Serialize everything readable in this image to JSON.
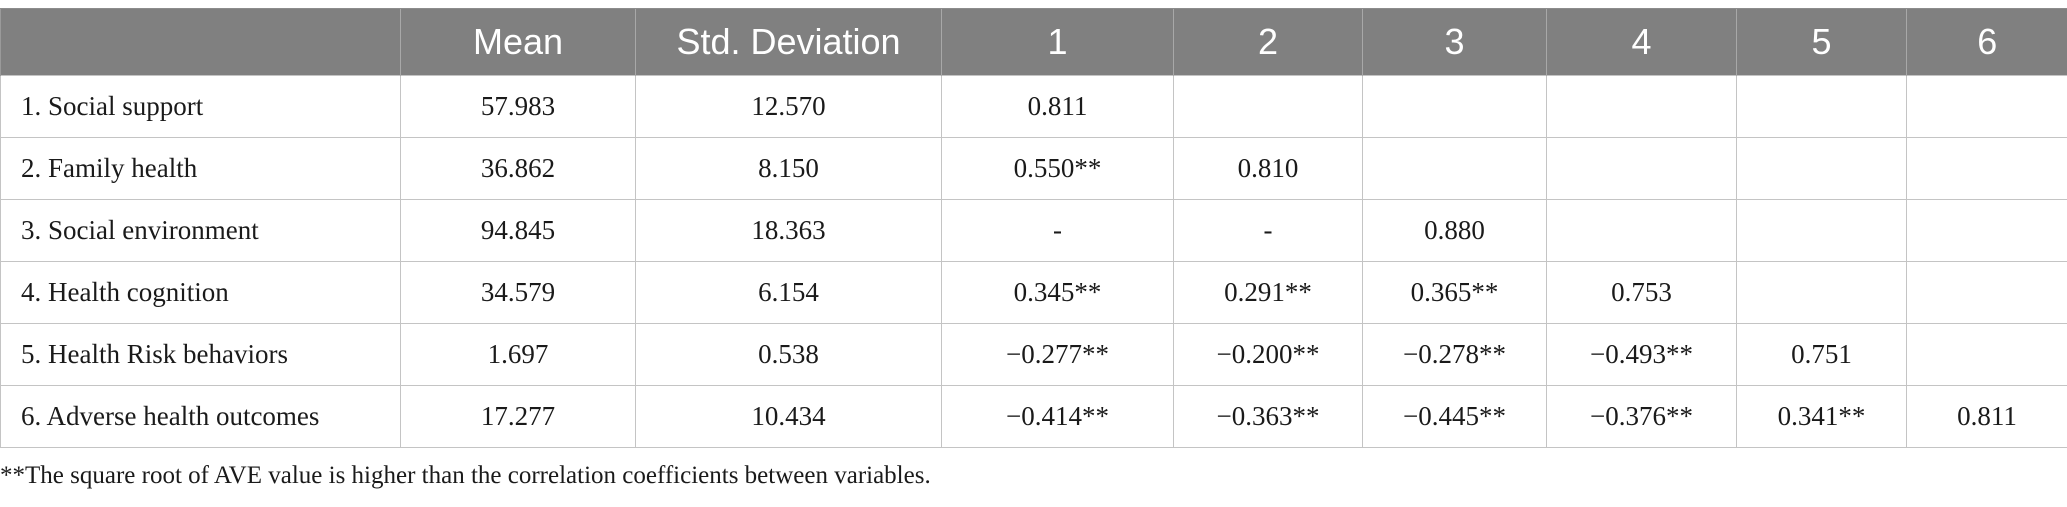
{
  "table": {
    "headers": [
      "",
      "Mean",
      "Std. Deviation",
      "1",
      "2",
      "3",
      "4",
      "5",
      "6"
    ],
    "rows": [
      [
        "1. Social support",
        "57.983",
        "12.570",
        "0.811",
        "",
        "",
        "",
        "",
        ""
      ],
      [
        "2. Family health",
        "36.862",
        "8.150",
        "0.550**",
        "0.810",
        "",
        "",
        "",
        ""
      ],
      [
        "3. Social environment",
        "94.845",
        "18.363",
        "-",
        "-",
        "0.880",
        "",
        "",
        ""
      ],
      [
        "4. Health cognition",
        "34.579",
        "6.154",
        "0.345**",
        "0.291**",
        "0.365**",
        "0.753",
        "",
        ""
      ],
      [
        "5. Health Risk behaviors",
        "1.697",
        "0.538",
        "−0.277**",
        "−0.200**",
        "−0.278**",
        "−0.493**",
        "0.751",
        ""
      ],
      [
        "6. Adverse health outcomes",
        "17.277",
        "10.434",
        "−0.414**",
        "−0.363**",
        "−0.445**",
        "−0.376**",
        "0.341**",
        "0.811"
      ]
    ]
  },
  "footnote": "**The square root of AVE value is higher than the correlation coefficients between variables.",
  "colors": {
    "header_bg": "#808080",
    "header_text": "#ffffff",
    "grid_line": "#c4c4c4"
  }
}
